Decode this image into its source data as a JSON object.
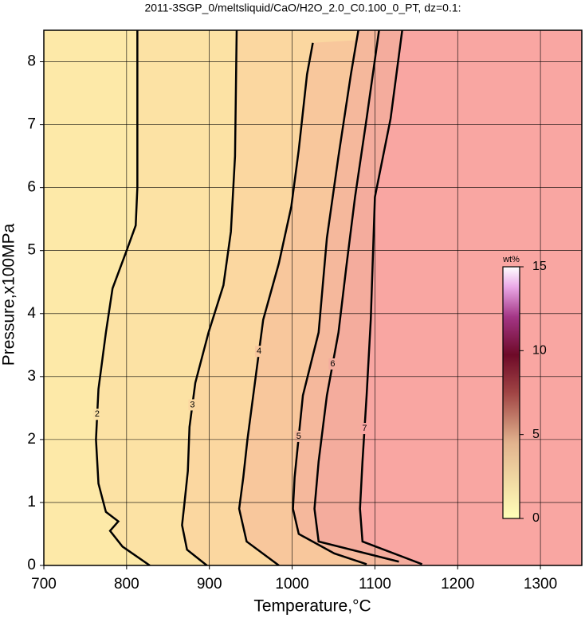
{
  "chart_data": {
    "type": "contour",
    "title": "2011-3SGP_0/meltsliquid/CaO/H2O_2.0_C0.100_0_PT, dz=0.1:",
    "xlabel": "Temperature,°C",
    "ylabel": "Pressure,x100MPa",
    "xlim": [
      700,
      1350
    ],
    "ylim": [
      0,
      8.5
    ],
    "xticks": [
      700,
      800,
      900,
      1000,
      1100,
      1200,
      1300
    ],
    "yticks": [
      0,
      1,
      2,
      3,
      4,
      5,
      6,
      7,
      8
    ],
    "grid": true,
    "fill_color": "#fde9a8",
    "contours": [
      {
        "level": 2,
        "color": "#fce2a4",
        "x": [
          828,
          795,
          780,
          790,
          775,
          766,
          763,
          766,
          775,
          783,
          800,
          811,
          813,
          813,
          813
        ],
        "y": [
          0,
          0.3,
          0.55,
          0.7,
          0.85,
          1.3,
          2,
          2.8,
          3.7,
          4.4,
          5,
          5.4,
          6,
          7.5,
          8.5
        ]
      },
      {
        "level": 3,
        "color": "#fbd7a0",
        "x": [
          897,
          873,
          867,
          870,
          874,
          876,
          883,
          899,
          917,
          926,
          931,
          933
        ],
        "y": [
          0,
          0.25,
          0.64,
          1.0,
          1.5,
          2.2,
          2.9,
          3.7,
          4.45,
          5.3,
          6.5,
          8.5
        ]
      },
      {
        "level": 4,
        "color": "#f8c79c",
        "x": [
          984,
          945,
          936,
          941,
          946,
          955,
          965,
          984,
          999,
          1008,
          1018,
          1025
        ],
        "y": [
          0,
          0.38,
          0.9,
          1.4,
          2.0,
          2.9,
          3.9,
          4.8,
          5.7,
          6.6,
          7.8,
          8.3
        ]
      },
      {
        "level": 5,
        "color": "#f5b89c",
        "x": [
          1090,
          1051,
          1008,
          1001,
          1003,
          1013,
          1032,
          1042,
          1056,
          1071,
          1080
        ],
        "y": [
          0.02,
          0.19,
          0.5,
          0.9,
          1.4,
          2.7,
          3.7,
          5.2,
          6.5,
          7.8,
          8.5
        ]
      },
      {
        "level": 6,
        "color": "#f4ac9d",
        "x": [
          1129,
          1032,
          1027,
          1032,
          1042,
          1056,
          1066,
          1076,
          1090,
          1105
        ],
        "y": [
          0.06,
          0.38,
          0.9,
          1.65,
          2.7,
          3.7,
          4.8,
          5.85,
          7.1,
          8.5
        ]
      },
      {
        "level": 7,
        "color": "#f9a6a2",
        "x": [
          1157,
          1085,
          1082,
          1085,
          1090,
          1095,
          1100,
          1119,
          1133
        ],
        "y": [
          0.02,
          0.38,
          0.9,
          1.65,
          2.7,
          3.9,
          5.85,
          7.1,
          8.5
        ]
      }
    ],
    "colorbar": {
      "label": "wt%",
      "lim": [
        0,
        15
      ],
      "ticks": [
        0,
        5,
        10,
        15
      ]
    }
  }
}
